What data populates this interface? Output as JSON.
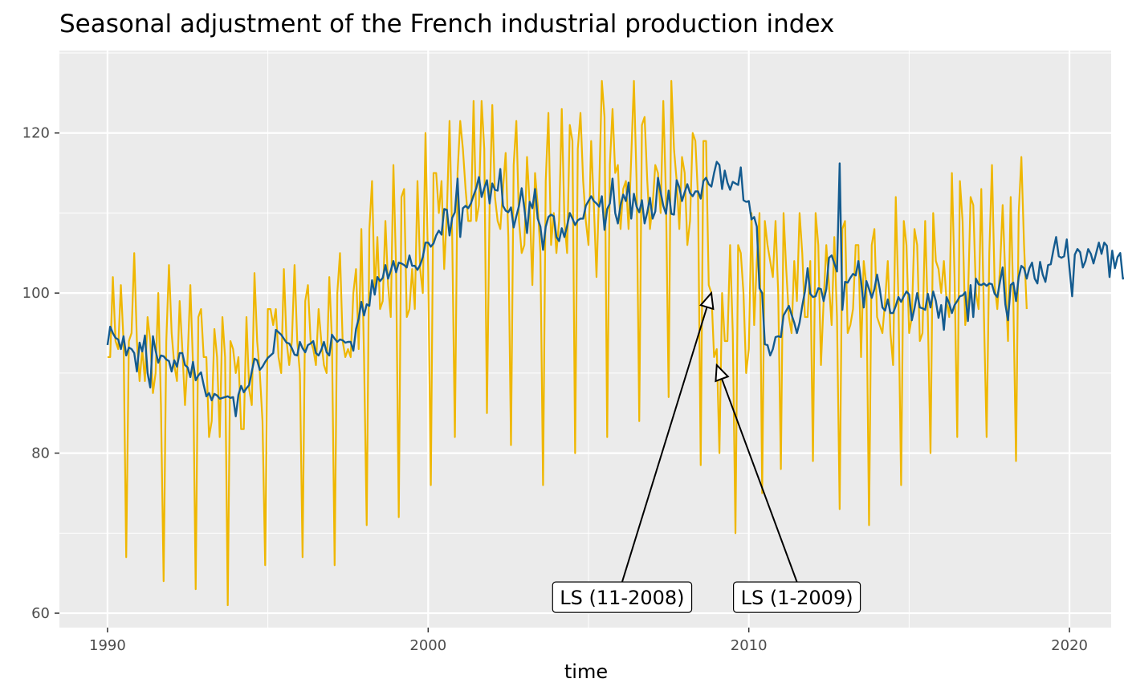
{
  "chart_data": {
    "type": "line",
    "title": "Seasonal adjustment of the French industrial production index",
    "xlabel": "time",
    "ylabel": "",
    "xlim": [
      1988.5,
      2021.3
    ],
    "ylim": [
      58.2,
      130.3
    ],
    "x_ticks": [
      1990,
      2000,
      2010,
      2020
    ],
    "x_tick_labels": [
      "1990",
      "2000",
      "2010",
      "2020"
    ],
    "y_ticks": [
      60,
      80,
      100,
      120
    ],
    "y_tick_labels": [
      "60",
      "80",
      "100",
      "120"
    ],
    "x_minor_ticks": [
      1995,
      2005,
      2015
    ],
    "y_minor_ticks": [
      70,
      90,
      110,
      130
    ],
    "grid": true,
    "legend": "none",
    "start": "1990-01",
    "frequency": "monthly",
    "series": [
      {
        "color": "#EFB700",
        "values": [
          92,
          92,
          102,
          94,
          93,
          101,
          94,
          67,
          94,
          95,
          105,
          94,
          89,
          93,
          89,
          97,
          94,
          87.5,
          90,
          100,
          86,
          64,
          94,
          103.5,
          95,
          91,
          89,
          99,
          93,
          86,
          92,
          101,
          91,
          63,
          97,
          98,
          92,
          92,
          82,
          84,
          95.5,
          92,
          82,
          97,
          92,
          61,
          94,
          93,
          90,
          92,
          83,
          83,
          97,
          88,
          86,
          102.5,
          94,
          90,
          84,
          66,
          98,
          98,
          96,
          98,
          92,
          90,
          103,
          94,
          91,
          94,
          103.5,
          94,
          90,
          67,
          99,
          101,
          94,
          93,
          91,
          98,
          94,
          91,
          90,
          102,
          94,
          66,
          100,
          105,
          94,
          92,
          93,
          92,
          100,
          103,
          93,
          108,
          92,
          71,
          108,
          114,
          100,
          107,
          98,
          99,
          109,
          101,
          97,
          116,
          103,
          72,
          112,
          113,
          97,
          98,
          103,
          98,
          114,
          103,
          100,
          120,
          103,
          76,
          115,
          115,
          110,
          114,
          103,
          110,
          121.5,
          107,
          82,
          115,
          121.5,
          118,
          113,
          109,
          109,
          124,
          109,
          111,
          124,
          118,
          85,
          111,
          123.5,
          112,
          109,
          108,
          113,
          117.5,
          107,
          81,
          116,
          121.5,
          109,
          105,
          106,
          117,
          111,
          101,
          115,
          111,
          105,
          76,
          114,
          122.5,
          106,
          110,
          105,
          109,
          123,
          109,
          105,
          121,
          119,
          80,
          118,
          122.5,
          114,
          109,
          106,
          119,
          111,
          102,
          113,
          126.5,
          122,
          82,
          116,
          123,
          115,
          116,
          108,
          113,
          114,
          108,
          117,
          126.5,
          114,
          84,
          121,
          122,
          114,
          108,
          111,
          116,
          115,
          110,
          124,
          112,
          87,
          126.5,
          118,
          114,
          108,
          117,
          115,
          106,
          109,
          120,
          119,
          112,
          78.5,
          119,
          119,
          101,
          100,
          92,
          93,
          80,
          100,
          94,
          94,
          106,
          95,
          70,
          106,
          105,
          100,
          90,
          93,
          110,
          96,
          104,
          110,
          75,
          109,
          106,
          104,
          102,
          109,
          100,
          78,
          110,
          103,
          97,
          95,
          104,
          99,
          110,
          105,
          97,
          97,
          104,
          79,
          110,
          106,
          91,
          99,
          106,
          101,
          96,
          107,
          97,
          73,
          108,
          109,
          95,
          96,
          98,
          106,
          106,
          92,
          104,
          101,
          71,
          106,
          108,
          97,
          96,
          95,
          99,
          104,
          95,
          91,
          112,
          99,
          76,
          109,
          106,
          95,
          97,
          108,
          106,
          94,
          95,
          109,
          97,
          80,
          110,
          104,
          103,
          100,
          104,
          99,
          97,
          115,
          102,
          82,
          114,
          109,
          96,
          99,
          112,
          111,
          100,
          98,
          113,
          97,
          82,
          105,
          116,
          101,
          98,
          103,
          111,
          102,
          94,
          112,
          99,
          79,
          110,
          117,
          106,
          98
        ]
      },
      {
        "color": "#145B8F",
        "values": [
          93.5,
          95.8,
          95,
          94.4,
          94.2,
          93,
          94.6,
          92.2,
          93.2,
          93,
          92.5,
          90.2,
          93.8,
          92.7,
          94.7,
          90,
          88.2,
          94.6,
          92.8,
          91.3,
          92.2,
          92.1,
          91.7,
          91.5,
          90.2,
          91.6,
          90.8,
          92.5,
          92.5,
          91,
          90.7,
          89.5,
          91.4,
          89.1,
          89.7,
          90.1,
          88.5,
          87.1,
          87.5,
          86.6,
          87.4,
          87.2,
          86.8,
          86.9,
          87,
          87.1,
          86.9,
          87,
          84.6,
          87.3,
          88.4,
          87.6,
          88.1,
          88.5,
          90.2,
          91.8,
          91.6,
          90.4,
          90.8,
          91.4,
          91.9,
          92.2,
          92.5,
          95.4,
          95.1,
          94.8,
          94.3,
          93.8,
          93.7,
          93.1,
          92.3,
          92.2,
          93.9,
          93.1,
          92.6,
          93.5,
          93.7,
          94,
          92.5,
          92.2,
          92.9,
          93.9,
          92.6,
          92.2,
          94.8,
          94.3,
          93.9,
          94.2,
          94.1,
          93.8,
          93.9,
          93.9,
          92.8,
          95.5,
          96.8,
          98.9,
          97.2,
          98.6,
          98.4,
          101.6,
          99.8,
          102,
          101.5,
          101.9,
          103.5,
          101.8,
          102.8,
          104,
          102.6,
          103.8,
          103.7,
          103.5,
          103.2,
          104.7,
          103.4,
          103.4,
          102.9,
          103.5,
          104.5,
          106.3,
          106.3,
          105.8,
          106.2,
          107.2,
          107.8,
          107.3,
          110.5,
          110.4,
          107.2,
          109.4,
          110.1,
          114.3,
          107,
          110.6,
          110.9,
          110.6,
          111.2,
          112.2,
          113.1,
          114.5,
          112,
          113.1,
          114.1,
          111.2,
          113.7,
          112.9,
          112.8,
          115.5,
          110.9,
          110.3,
          110.1,
          110.7,
          108.2,
          109.6,
          110.9,
          113.1,
          110.6,
          107.5,
          111.4,
          110.6,
          113,
          109.3,
          108.3,
          105.4,
          108.3,
          109.5,
          109.8,
          109.6,
          107,
          106.5,
          108.1,
          107,
          108.4,
          110,
          109.3,
          108.5,
          109.1,
          109.3,
          109.3,
          110.9,
          111.5,
          112.1,
          111.5,
          111.2,
          110.8,
          112.1,
          107.9,
          110.5,
          111.2,
          114.3,
          110,
          108.7,
          111,
          112.3,
          111.5,
          113.8,
          109.3,
          112.4,
          110.8,
          110.1,
          111.6,
          108.7,
          110.1,
          111.9,
          109.3,
          110.2,
          114.4,
          112.6,
          110.9,
          109.9,
          112.8,
          109.9,
          109.8,
          114.1,
          113.2,
          111.5,
          112.6,
          113.6,
          112.5,
          112.1,
          112.7,
          112.7,
          111.8,
          114,
          114.4,
          113.6,
          113.3,
          115,
          116.4,
          116,
          113,
          115.3,
          113.8,
          112.9,
          113.9,
          113.7,
          113.5,
          115.7,
          111.6,
          111.4,
          111.5,
          109.2,
          109.5,
          108.3,
          100.6,
          100,
          93.6,
          93.5,
          92.2,
          93,
          94.5,
          94.6,
          94.5,
          97.2,
          97.8,
          98.4,
          97.3,
          96.3,
          95,
          96.3,
          98.4,
          100.2,
          103.1,
          99.9,
          99.5,
          99.6,
          100.6,
          100.5,
          99,
          100.5,
          104.4,
          104.7,
          103.7,
          102.7,
          116.2,
          97.9,
          101.4,
          101.3,
          101.9,
          102.4,
          102.2,
          104,
          101.5,
          98.2,
          101.5,
          100.5,
          99.4,
          100.5,
          102.3,
          100.5,
          98.2,
          97.8,
          99.2,
          97.5,
          97.5,
          98.4,
          99.5,
          98.9,
          99.6,
          100.2,
          99.8,
          96.6,
          98.1,
          100,
          98.2,
          98.1,
          97.9,
          99.9,
          98.2,
          100.2,
          99,
          96.9,
          98.5,
          95.4,
          99.5,
          98.7,
          97.5,
          98.5,
          99,
          99.6,
          99.7,
          100.1,
          96.5,
          101,
          97,
          101.8,
          101.1,
          101,
          101.2,
          100.9,
          101.2,
          101.1,
          99.9,
          99.5,
          101.4,
          103.2,
          98.6,
          96.6,
          101,
          101.3,
          99,
          102,
          103.4,
          103.1,
          101.8,
          103.1,
          103.8,
          101.8,
          101.2,
          103.9,
          102.3,
          101.4,
          103.5,
          103.6,
          105.4,
          107,
          104.6,
          104.4,
          104.6,
          106.7,
          103.1,
          99.6,
          104.8,
          105.5,
          105.1,
          103.2,
          104,
          105.5,
          104.9,
          103.7,
          105,
          106.3,
          104.9,
          106.3,
          105.9,
          102,
          105.3,
          103.1,
          104.5,
          105,
          101.8,
          101.9
        ]
      }
    ],
    "annotations": [
      {
        "label": "LS (11-2008)",
        "x": 2008.83,
        "y": 100.0,
        "text_x": 2006.05,
        "text_y": 62.0
      },
      {
        "label": "LS (1-2009)",
        "x": 2009.0,
        "y": 91.0,
        "text_x": 2011.5,
        "text_y": 62.0
      }
    ]
  }
}
